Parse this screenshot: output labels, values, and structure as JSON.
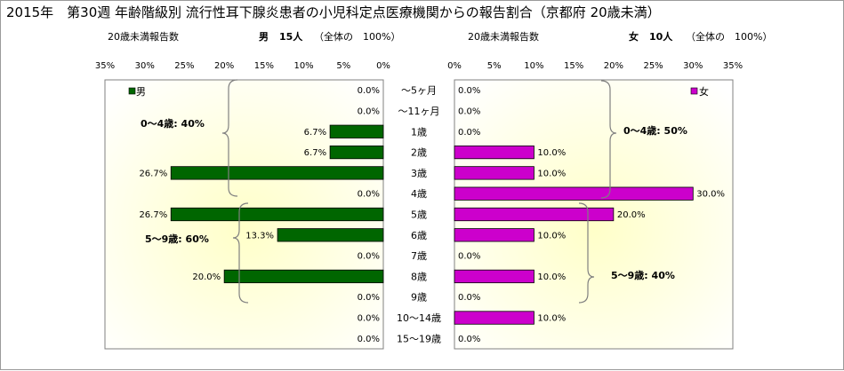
{
  "title": "2015年　第30週 年齢階級別 流行性耳下腺炎患者の小児科定点医療機関からの報告割合（京都府 20歳未満）",
  "left_panel": {
    "subtitle": "20歳未満報告数",
    "summary_sex": "男",
    "summary_count": "15人",
    "summary_pct": "（全体の　100%）",
    "legend": "男",
    "annotation_0_4": "0～4歳: 40%",
    "annotation_5_9": "5～9歳: 60%"
  },
  "right_panel": {
    "subtitle": "20歳未満報告数",
    "summary_sex": "女",
    "summary_count": "10人",
    "summary_pct": "（全体の　100%）",
    "legend": "女",
    "annotation_0_4": "0～4歳: 50%",
    "annotation_5_9": "5～9歳: 40%"
  },
  "colors": {
    "male": "#006600",
    "female": "#cc00cc",
    "plot_fill": "#ffffcc"
  },
  "chart_data": [
    {
      "type": "bar",
      "orientation": "horizontal",
      "direction": "right-to-left",
      "categories": [
        "～5ヶ月",
        "～11ヶ月",
        "1歳",
        "2歳",
        "3歳",
        "4歳",
        "5歳",
        "6歳",
        "7歳",
        "8歳",
        "9歳",
        "10～14歳",
        "15～19歳"
      ],
      "series": [
        {
          "name": "男",
          "values": [
            0.0,
            0.0,
            6.7,
            6.7,
            26.7,
            0.0,
            26.7,
            13.3,
            0.0,
            20.0,
            0.0,
            0.0,
            0.0
          ]
        }
      ],
      "data_labels": [
        "0.0%",
        "0.0%",
        "6.7%",
        "6.7%",
        "26.7%",
        "0.0%",
        "26.7%",
        "13.3%",
        "0.0%",
        "20.0%",
        "0.0%",
        "0.0%",
        "0.0%"
      ],
      "xlim": [
        0,
        35
      ],
      "xticks": [
        "35%",
        "30%",
        "25%",
        "20%",
        "15%",
        "10%",
        "5%",
        "0%"
      ],
      "legend_position": "top-left"
    },
    {
      "type": "bar",
      "orientation": "horizontal",
      "direction": "left-to-right",
      "categories": [
        "～5ヶ月",
        "～11ヶ月",
        "1歳",
        "2歳",
        "3歳",
        "4歳",
        "5歳",
        "6歳",
        "7歳",
        "8歳",
        "9歳",
        "10～14歳",
        "15～19歳"
      ],
      "series": [
        {
          "name": "女",
          "values": [
            0.0,
            0.0,
            0.0,
            10.0,
            10.0,
            30.0,
            20.0,
            10.0,
            0.0,
            10.0,
            0.0,
            10.0,
            0.0
          ]
        }
      ],
      "data_labels": [
        "0.0%",
        "0.0%",
        "0.0%",
        "10.0%",
        "10.0%",
        "30.0%",
        "20.0%",
        "10.0%",
        "0.0%",
        "10.0%",
        "0.0%",
        "10.0%",
        "0.0%"
      ],
      "xlim": [
        0,
        35
      ],
      "xticks": [
        "0%",
        "5%",
        "10%",
        "15%",
        "20%",
        "25%",
        "30%",
        "35%"
      ],
      "legend_position": "top-right"
    }
  ]
}
